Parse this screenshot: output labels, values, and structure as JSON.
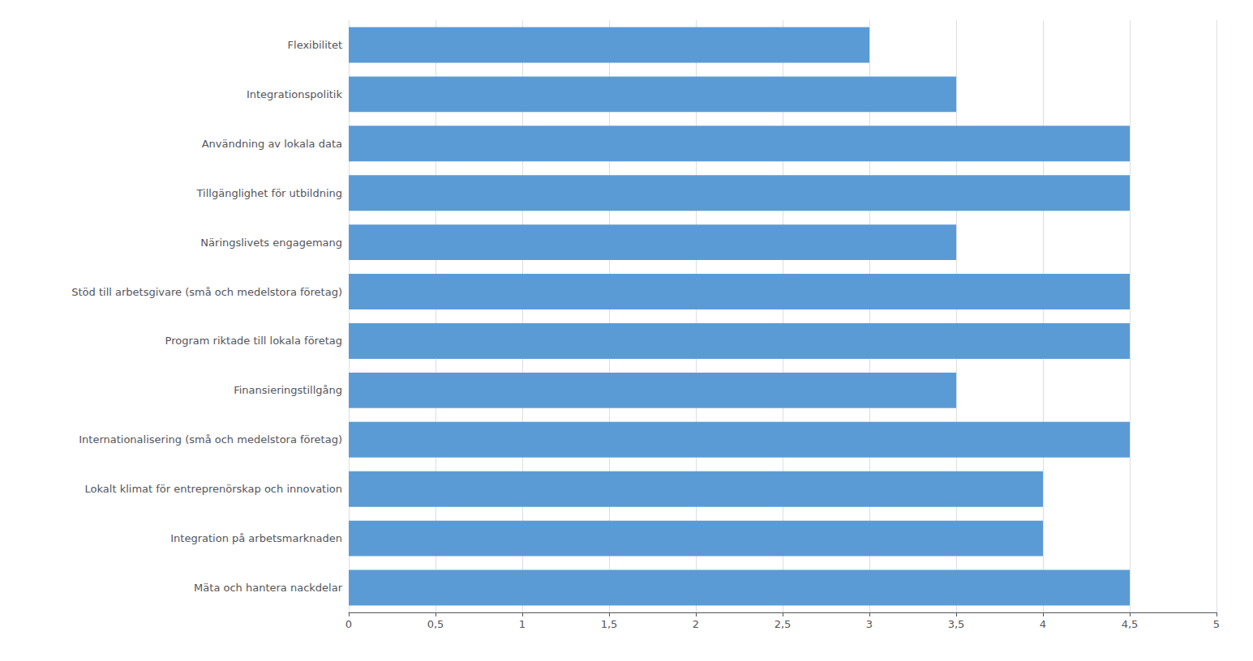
{
  "chart_data": {
    "type": "bar",
    "orientation": "horizontal",
    "categories": [
      "Mäta och hantera nackdelar",
      "Integration på arbetsmarknaden",
      "Lokalt klimat för entreprenörskap och innovation",
      "Internationalisering (små och medelstora företag)",
      "Finansieringstillgång",
      "Program riktade till lokala företag",
      "Stöd till arbetsgivare (små och medelstora företag)",
      "Näringslivets engagemang",
      "Tillgänglighet för utbildning",
      "Användning av lokala data",
      "Integrationspolitik",
      "Flexibilitet"
    ],
    "values": [
      4.5,
      4.0,
      4.0,
      4.5,
      3.5,
      4.5,
      4.5,
      3.5,
      4.5,
      4.5,
      3.5,
      3.0
    ],
    "color": "#5b9bd5",
    "xlim": [
      0,
      5
    ],
    "xticks": [
      0,
      {
        "value": 0.5,
        "label": "0,5"
      },
      1,
      {
        "value": 1.5,
        "label": "1,5"
      },
      2,
      {
        "value": 2.5,
        "label": "2,5"
      },
      3,
      {
        "value": 3.5,
        "label": "3,5"
      },
      4,
      {
        "value": 4.5,
        "label": "4,5"
      },
      5
    ],
    "grid": true
  }
}
